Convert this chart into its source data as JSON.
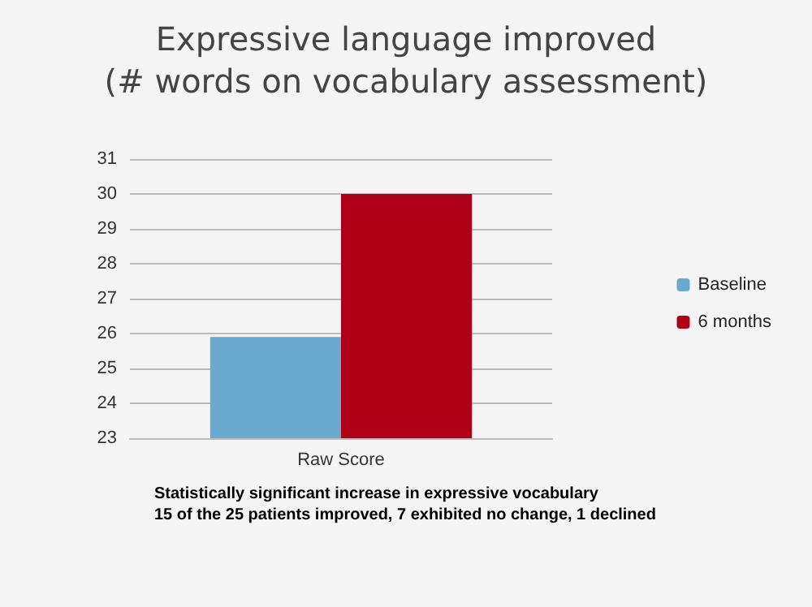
{
  "chart_data": {
    "type": "bar",
    "title": "Expressive language improved\n(# words on vocabulary assessment)",
    "categories": [
      "Raw Score"
    ],
    "series": [
      {
        "name": "Baseline",
        "color": "#6aa9d0",
        "values": [
          25.9
        ]
      },
      {
        "name": "6 months",
        "color": "#b00018",
        "values": [
          30
        ]
      }
    ],
    "ylim": [
      23,
      31
    ],
    "yticks": [
      23,
      24,
      25,
      26,
      27,
      28,
      29,
      30,
      31
    ],
    "grid": "y",
    "legend": "right",
    "annotations": [
      "Statistically significant increase in expressive vocabulary\n15 of the 25 patients improved, 7 exhibited no change, 1 declined"
    ]
  }
}
